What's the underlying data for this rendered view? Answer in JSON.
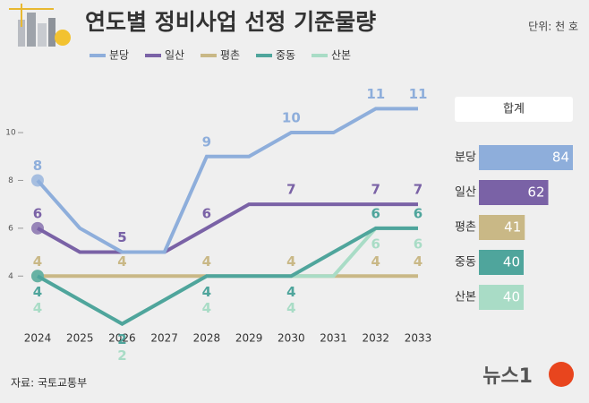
{
  "chart_data": [
    {
      "type": "line",
      "title": "연도별 정비사업 선정 기준물량",
      "unit_label": "단위: 천 호",
      "categories": [
        "2024",
        "2025",
        "2026",
        "2027",
        "2028",
        "2029",
        "2030",
        "2031",
        "2032",
        "2033"
      ],
      "series": [
        {
          "name": "분당",
          "color": "#8eaedb",
          "values": [
            8,
            6,
            5,
            5,
            9,
            9,
            10,
            10,
            11,
            11
          ]
        },
        {
          "name": "일산",
          "color": "#7a62a6",
          "values": [
            6,
            5,
            5,
            5,
            6,
            7,
            7,
            7,
            7,
            7
          ]
        },
        {
          "name": "평촌",
          "color": "#c9b886",
          "values": [
            4,
            4,
            4,
            4,
            4,
            4,
            4,
            4,
            4,
            4
          ]
        },
        {
          "name": "중동",
          "color": "#4fa59c",
          "values": [
            4,
            3,
            2,
            3,
            4,
            4,
            4,
            5,
            6,
            6
          ]
        },
        {
          "name": "산본",
          "color": "#a9dcc6",
          "values": [
            4,
            3,
            2,
            3,
            4,
            4,
            4,
            4,
            6,
            6
          ]
        }
      ],
      "data_labels_at": [
        0,
        2,
        4,
        6,
        8,
        9
      ],
      "ylim": [
        1.5,
        11.8
      ],
      "yticks": [
        4,
        6,
        8,
        10
      ],
      "grid": false
    },
    {
      "type": "bar",
      "title": "합계",
      "categories": [
        "분당",
        "일산",
        "평촌",
        "중동",
        "산본"
      ],
      "values": [
        84,
        62,
        41,
        40,
        40
      ],
      "colors": [
        "#8eaedb",
        "#7a62a6",
        "#c9b886",
        "#4fa59c",
        "#a9dcc6"
      ],
      "xlim": [
        0,
        84
      ]
    }
  ],
  "source": "자료: 국토교통부",
  "logo": "뉴스1"
}
